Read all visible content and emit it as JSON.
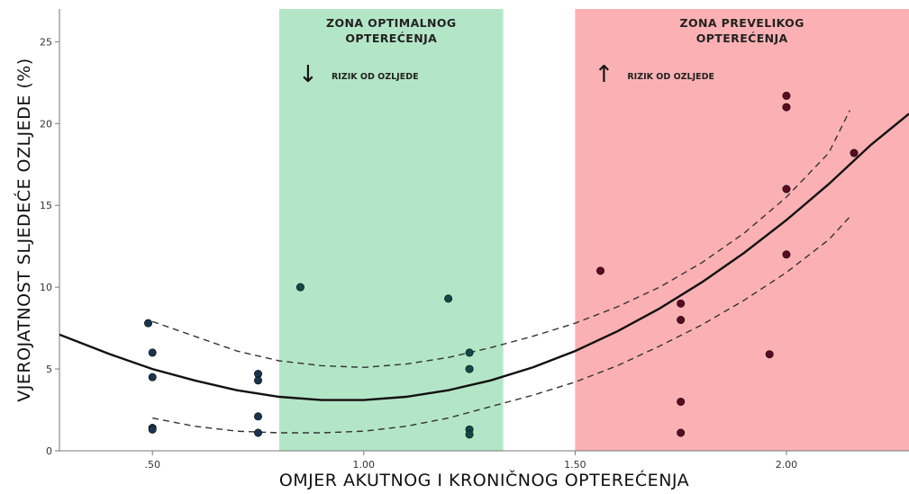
{
  "chart_data": {
    "type": "scatter",
    "title": "",
    "xlabel": "OMJER AKUTNOG I KRONIČNOG OPTEREĆENJA",
    "ylabel": "VJEROJATNOST SLJEDEĆE OZLJEDE (%)",
    "xlim": [
      0.28,
      2.29
    ],
    "ylim": [
      0,
      27
    ],
    "x_ticks": [
      0.5,
      1.0,
      1.5,
      2.0
    ],
    "x_tick_labels": [
      ".50",
      "1.00",
      "1.50",
      "2.00"
    ],
    "y_ticks": [
      0,
      5,
      10,
      15,
      20,
      25
    ],
    "y_tick_labels": [
      "0",
      "5",
      "10",
      "15",
      "20",
      "25"
    ],
    "grid": false,
    "zones": [
      {
        "name": "optimal",
        "x_range": [
          0.8,
          1.33
        ],
        "color": "#b3e6c6",
        "title_lines": [
          "ZONA OPTIMALNOG",
          "OPTEREĆENJA"
        ],
        "arrow": "↓",
        "note": "RIZIK OD OZLJEDE"
      },
      {
        "name": "overload",
        "x_range": [
          1.5,
          2.29
        ],
        "color": "#fbb1b3",
        "title_lines": [
          "ZONA PREVELIKOG",
          "OPTEREĆENJA"
        ],
        "arrow": "↑",
        "note": "RIZIK OD OZLJEDE"
      }
    ],
    "points": [
      {
        "x": 0.49,
        "y": 7.8,
        "color": "#1a3450"
      },
      {
        "x": 0.5,
        "y": 6.0,
        "color": "#1a3450"
      },
      {
        "x": 0.5,
        "y": 4.5,
        "color": "#1a3450"
      },
      {
        "x": 0.5,
        "y": 1.4,
        "color": "#1a3450"
      },
      {
        "x": 0.5,
        "y": 1.3,
        "color": "#1a3450"
      },
      {
        "x": 0.75,
        "y": 4.7,
        "color": "#1a3450"
      },
      {
        "x": 0.75,
        "y": 4.3,
        "color": "#1a3450"
      },
      {
        "x": 0.75,
        "y": 2.1,
        "color": "#1a3450"
      },
      {
        "x": 0.75,
        "y": 1.1,
        "color": "#1a3450"
      },
      {
        "x": 0.85,
        "y": 10.0,
        "color": "#0f4a48"
      },
      {
        "x": 1.2,
        "y": 9.3,
        "color": "#0f4a48"
      },
      {
        "x": 1.25,
        "y": 6.0,
        "color": "#0f4a48"
      },
      {
        "x": 1.25,
        "y": 5.0,
        "color": "#0f4a48"
      },
      {
        "x": 1.25,
        "y": 1.3,
        "color": "#0f4a48"
      },
      {
        "x": 1.25,
        "y": 1.0,
        "color": "#0f4a48"
      },
      {
        "x": 1.56,
        "y": 11.0,
        "color": "#5a0a22"
      },
      {
        "x": 1.75,
        "y": 9.0,
        "color": "#5a0a22"
      },
      {
        "x": 1.75,
        "y": 8.0,
        "color": "#5a0a22"
      },
      {
        "x": 1.75,
        "y": 3.0,
        "color": "#5a0a22"
      },
      {
        "x": 1.75,
        "y": 1.1,
        "color": "#5a0a22"
      },
      {
        "x": 1.96,
        "y": 5.9,
        "color": "#5a0a22"
      },
      {
        "x": 2.0,
        "y": 21.7,
        "color": "#5a0a22"
      },
      {
        "x": 2.0,
        "y": 21.0,
        "color": "#5a0a22"
      },
      {
        "x": 2.0,
        "y": 16.0,
        "color": "#5a0a22"
      },
      {
        "x": 2.0,
        "y": 12.0,
        "color": "#5a0a22"
      },
      {
        "x": 2.16,
        "y": 18.2,
        "color": "#5a0a22"
      }
    ],
    "fit_curve": {
      "x": [
        0.28,
        0.4,
        0.5,
        0.6,
        0.7,
        0.8,
        0.9,
        1.0,
        1.1,
        1.2,
        1.3,
        1.4,
        1.5,
        1.6,
        1.7,
        1.8,
        1.9,
        2.0,
        2.1,
        2.2,
        2.29
      ],
      "y": [
        7.1,
        5.9,
        5.0,
        4.3,
        3.7,
        3.3,
        3.1,
        3.1,
        3.3,
        3.7,
        4.3,
        5.1,
        6.1,
        7.3,
        8.7,
        10.3,
        12.1,
        14.1,
        16.3,
        18.7,
        20.6
      ],
      "color": "#111111"
    },
    "ci_upper": {
      "x": [
        0.5,
        0.6,
        0.7,
        0.8,
        0.9,
        1.0,
        1.1,
        1.2,
        1.3,
        1.4,
        1.5,
        1.6,
        1.7,
        1.8,
        1.9,
        2.0,
        2.1,
        2.15
      ],
      "y": [
        7.9,
        7.0,
        6.1,
        5.5,
        5.2,
        5.1,
        5.3,
        5.7,
        6.3,
        7.0,
        7.8,
        8.8,
        10.0,
        11.5,
        13.3,
        15.5,
        18.2,
        20.8
      ]
    },
    "ci_lower": {
      "x": [
        0.5,
        0.6,
        0.7,
        0.8,
        0.9,
        1.0,
        1.1,
        1.2,
        1.3,
        1.4,
        1.5,
        1.6,
        1.7,
        1.8,
        1.9,
        2.0,
        2.1,
        2.15
      ],
      "y": [
        2.0,
        1.5,
        1.2,
        1.1,
        1.1,
        1.2,
        1.5,
        2.0,
        2.7,
        3.4,
        4.2,
        5.2,
        6.4,
        7.7,
        9.2,
        10.9,
        12.9,
        14.3
      ]
    }
  }
}
